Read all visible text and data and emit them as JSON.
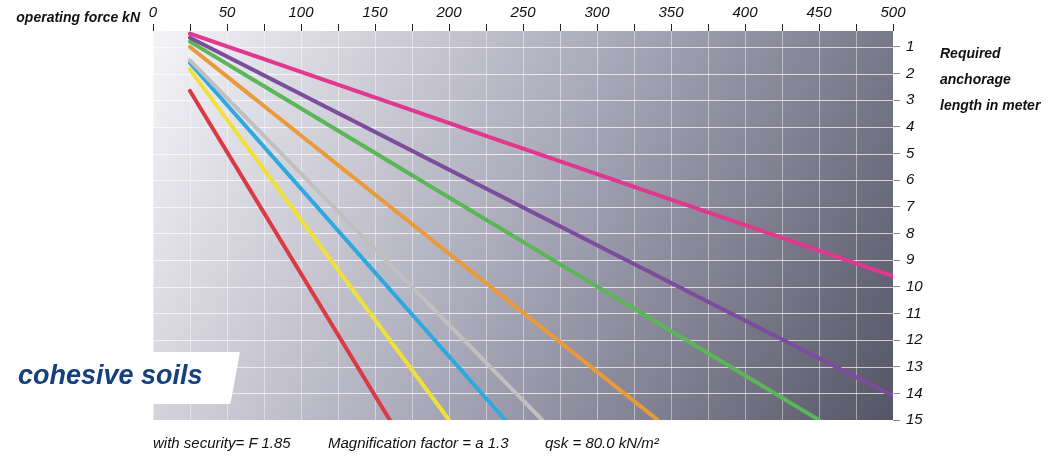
{
  "chart_data": {
    "type": "line",
    "title": "cohesive soils",
    "xlabel": "operating force kN",
    "ylabel": "Required anchorage length in meter",
    "annotations": [
      "with security= F 1.85",
      "Magnification factor = a 1.3",
      "qsk = 80.0 kN/m²"
    ],
    "xlim": [
      0,
      500
    ],
    "ylim": [
      15,
      0.4
    ],
    "xticks": [
      0,
      {
        "value": 25,
        "label": null
      },
      50,
      {
        "value": 75,
        "label": null
      },
      100,
      {
        "value": 125,
        "label": null
      },
      150,
      {
        "value": 175,
        "label": null
      },
      200,
      {
        "value": 225,
        "label": null
      },
      250,
      {
        "value": 275,
        "label": null
      },
      300,
      {
        "value": 325,
        "label": null
      },
      350,
      {
        "value": 375,
        "label": null
      },
      400,
      {
        "value": 425,
        "label": null
      },
      450,
      {
        "value": 475,
        "label": null
      },
      500
    ],
    "yticks": [
      1,
      2,
      3,
      4,
      5,
      6,
      7,
      8,
      9,
      10,
      11,
      12,
      13,
      14,
      15
    ],
    "grid": true,
    "marker": "none",
    "line_style": "solid",
    "series": [
      {
        "color": "#e0388f",
        "x": [
          25,
          500
        ],
        "values": [
          0.5,
          9.6
        ]
      },
      {
        "color": "#7b4d9b",
        "x": [
          25,
          500
        ],
        "values": [
          0.65,
          14.1
        ]
      },
      {
        "color": "#5db55a",
        "x": [
          25,
          450
        ],
        "values": [
          0.8,
          15
        ]
      },
      {
        "color": "#e99a3a",
        "x": [
          25,
          341
        ],
        "values": [
          1.0,
          15
        ]
      },
      {
        "color": "#c0c0c0",
        "x": [
          25,
          263
        ],
        "values": [
          1.5,
          15
        ]
      },
      {
        "color": "#2fa8e0",
        "x": [
          25,
          238
        ],
        "values": [
          1.6,
          15
        ]
      },
      {
        "color": "#f0e03a",
        "x": [
          25,
          200
        ],
        "values": [
          1.85,
          15
        ]
      },
      {
        "color": "#d93a45",
        "x": [
          25,
          160
        ],
        "values": [
          2.65,
          15
        ]
      }
    ]
  }
}
